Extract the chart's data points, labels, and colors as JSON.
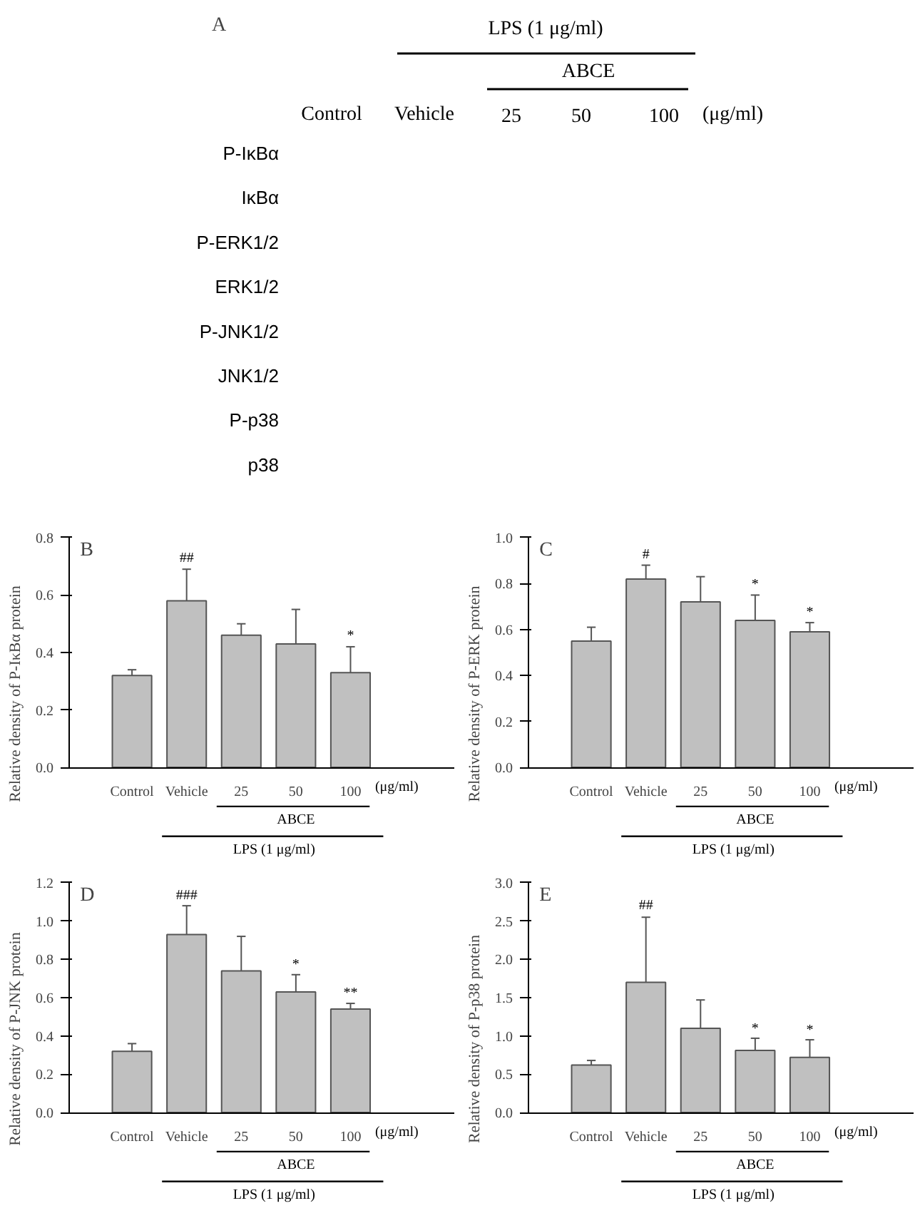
{
  "chart_data": [
    {
      "type": "other",
      "title": "A",
      "categories": [
        "Control",
        "Vehicle",
        "25",
        "50",
        "100"
      ],
      "y_categories": [
        "P-IκBα",
        "IκBα",
        "P-ERK1/2",
        "ERK1/2",
        "P-JNK1/2",
        "JNK1/2",
        "P-p38",
        "p38"
      ],
      "annotations": [
        "LPS (1 μg/ml)",
        "ABCE",
        "(μg/ml)"
      ]
    },
    {
      "type": "bar",
      "title": "B",
      "ylabel": "Relative density of P-IκBα protein",
      "categories": [
        "Control",
        "Vehicle",
        "25",
        "50",
        "100"
      ],
      "color": "#c0c0c0",
      "ylim": [
        0,
        0.8
      ],
      "yticks": [
        {
          "value": 0,
          "label": "0.0"
        },
        0.2,
        0.4,
        0.6,
        0.8
      ],
      "tick_labels": true,
      "values": [
        0.32,
        0.58,
        0.46,
        0.43,
        0.33
      ],
      "errors": [
        [
          0.32,
          0.34
        ],
        [
          0.58,
          0.69
        ],
        [
          0.46,
          0.5
        ],
        [
          0.43,
          0.55
        ],
        [
          0.33,
          0.42
        ]
      ],
      "annotations": [
        "(μg/ml)",
        "ABCE",
        "LPS (1 μg/ml)",
        {
          "text": "##",
          "x": "Vehicle",
          "y": 0.7
        },
        {
          "text": "*",
          "x": "100",
          "y": 0.43
        }
      ]
    },
    {
      "type": "bar",
      "title": "C",
      "ylabel": "Relative density of P-ERK protein",
      "categories": [
        "Control",
        "Vehicle",
        "25",
        "50",
        "100"
      ],
      "color": "#c0c0c0",
      "ylim": [
        0,
        1.0
      ],
      "yticks": [
        {
          "value": 0,
          "label": "0.0"
        },
        0.2,
        0.4,
        0.6,
        0.8,
        {
          "value": 1,
          "label": "1.0"
        }
      ],
      "values": [
        0.55,
        0.82,
        0.72,
        0.64,
        0.59
      ],
      "errors": [
        [
          0.55,
          0.61
        ],
        [
          0.82,
          0.88
        ],
        [
          0.72,
          0.83
        ],
        [
          0.64,
          0.75
        ],
        [
          0.59,
          0.63
        ]
      ],
      "annotations": [
        "(μg/ml)",
        "ABCE",
        "LPS (1 μg/ml)",
        {
          "text": "#",
          "x": "Vehicle",
          "y": 0.89
        },
        {
          "text": "*",
          "x": "50",
          "y": 0.76
        },
        {
          "text": "*",
          "x": "100",
          "y": 0.64
        }
      ]
    },
    {
      "type": "bar",
      "title": "D",
      "ylabel": "Relative density of P-JNK protein",
      "categories": [
        "Control",
        "Vehicle",
        "25",
        "50",
        "100"
      ],
      "color": "#c0c0c0",
      "ylim": [
        0,
        1.2
      ],
      "yticks": [
        {
          "value": 0,
          "label": "0.0"
        },
        0.2,
        0.4,
        0.6,
        0.8,
        {
          "value": 1,
          "label": "1.0"
        },
        1.2
      ],
      "values": [
        0.32,
        0.93,
        0.74,
        0.63,
        0.54
      ],
      "errors": [
        [
          0.32,
          0.36
        ],
        [
          0.93,
          1.08
        ],
        [
          0.74,
          0.92
        ],
        [
          0.63,
          0.72
        ],
        [
          0.54,
          0.57
        ]
      ],
      "annotations": [
        "(μg/ml)",
        "ABCE",
        "LPS (1 μg/ml)",
        {
          "text": "###",
          "x": "Vehicle",
          "y": 1.09
        },
        {
          "text": "*",
          "x": "50",
          "y": 0.73
        },
        {
          "text": "**",
          "x": "100",
          "y": 0.58
        }
      ]
    },
    {
      "type": "bar",
      "title": "E",
      "ylabel": "Relative density of P-p38 protein",
      "categories": [
        "Control",
        "Vehicle",
        "25",
        "50",
        "100"
      ],
      "color": "#c0c0c0",
      "ylim": [
        0,
        3.0
      ],
      "yticks": [
        {
          "value": 0,
          "label": "0.0"
        },
        0.5,
        {
          "value": 1,
          "label": "1.0"
        },
        1.5,
        {
          "value": 2,
          "label": "2.0"
        },
        2.5,
        {
          "value": 3,
          "label": "3.0"
        }
      ],
      "values": [
        0.62,
        1.7,
        1.1,
        0.81,
        0.72
      ],
      "errors": [
        [
          0.62,
          0.68
        ],
        [
          1.7,
          2.55
        ],
        [
          1.1,
          1.47
        ],
        [
          0.81,
          0.97
        ],
        [
          0.72,
          0.95
        ]
      ],
      "annotations": [
        "(μg/ml)",
        "ABCE",
        "LPS (1 μg/ml)",
        {
          "text": "##",
          "x": "Vehicle",
          "y": 2.6
        },
        {
          "text": "*",
          "x": "50",
          "y": 0.99
        },
        {
          "text": "*",
          "x": "100",
          "y": 0.97
        }
      ]
    }
  ]
}
